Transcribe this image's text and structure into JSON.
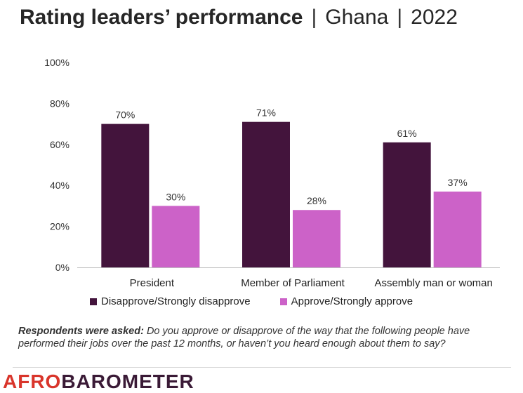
{
  "title": {
    "main": "Rating leaders’ performance",
    "country": "Ghana",
    "year": "2022"
  },
  "chart_data": {
    "type": "bar",
    "categories": [
      "President",
      "Member of Parliament",
      "Assembly man or woman"
    ],
    "series": [
      {
        "name": "Disapprove/Strongly disapprove",
        "values": [
          70,
          71,
          61
        ],
        "color": "#43143c"
      },
      {
        "name": "Approve/Strongly approve",
        "values": [
          30,
          28,
          37
        ],
        "color": "#cc62c8"
      }
    ],
    "ylim": [
      0,
      100
    ],
    "yticks": [
      "0%",
      "20%",
      "40%",
      "60%",
      "80%",
      "100%"
    ],
    "grid": false,
    "legend": "bottom"
  },
  "note": {
    "label": "Respondents were asked:",
    "text": "Do you approve or disapprove of the way that the following people have performed their jobs over the past 12 months, or haven’t you heard enough about them to say?"
  },
  "logo": {
    "part1": "AFRO",
    "part2": "BAROMETER"
  }
}
